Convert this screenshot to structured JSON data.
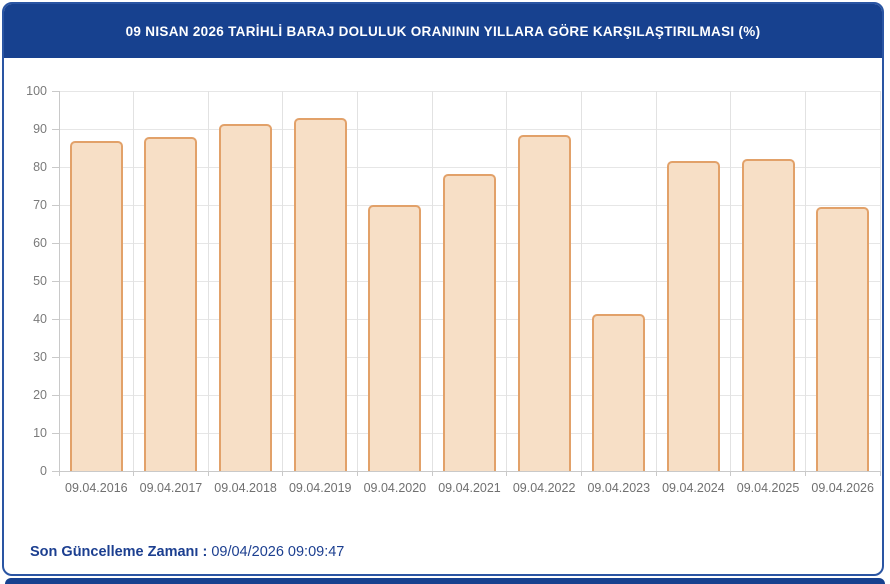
{
  "header": {
    "title": "09 NISAN 2026 TARİHLİ BARAJ DOLULUK ORANININ YILLARA GÖRE KARŞILAŞTIRILMASI (%)"
  },
  "chart_data": {
    "type": "bar",
    "title": "09 NISAN 2026 TARİHLİ BARAJ DOLULUK ORANININ YILLARA GÖRE KARŞILAŞTIRILMASI (%)",
    "categories": [
      "09.04.2016",
      "09.04.2017",
      "09.04.2018",
      "09.04.2019",
      "09.04.2020",
      "09.04.2021",
      "09.04.2022",
      "09.04.2023",
      "09.04.2024",
      "09.04.2025",
      "09.04.2026"
    ],
    "values": [
      86.8,
      87.8,
      91.2,
      92.8,
      69.9,
      78.1,
      88.4,
      41.2,
      81.5,
      82.0,
      69.4
    ],
    "xlabel": "",
    "ylabel": "",
    "ylim": [
      0,
      100
    ],
    "y_ticks": [
      0,
      10,
      20,
      30,
      40,
      50,
      60,
      70,
      80,
      90,
      100
    ],
    "grid": "on",
    "legend": "none",
    "bar_fill": "#f7dfc6",
    "bar_border": "#e2a169"
  },
  "footer": {
    "label": "Son Güncelleme Zamanı",
    "separator": " : ",
    "value": "09/04/2026 09:09:47"
  },
  "colors": {
    "header_bg": "#17418f",
    "card_border": "#2a55a3",
    "footer_text": "#1c3f90",
    "grid_line": "#e6e6e6",
    "axis_line": "#c9c9c9",
    "tick_label": "#7a7a7a"
  }
}
